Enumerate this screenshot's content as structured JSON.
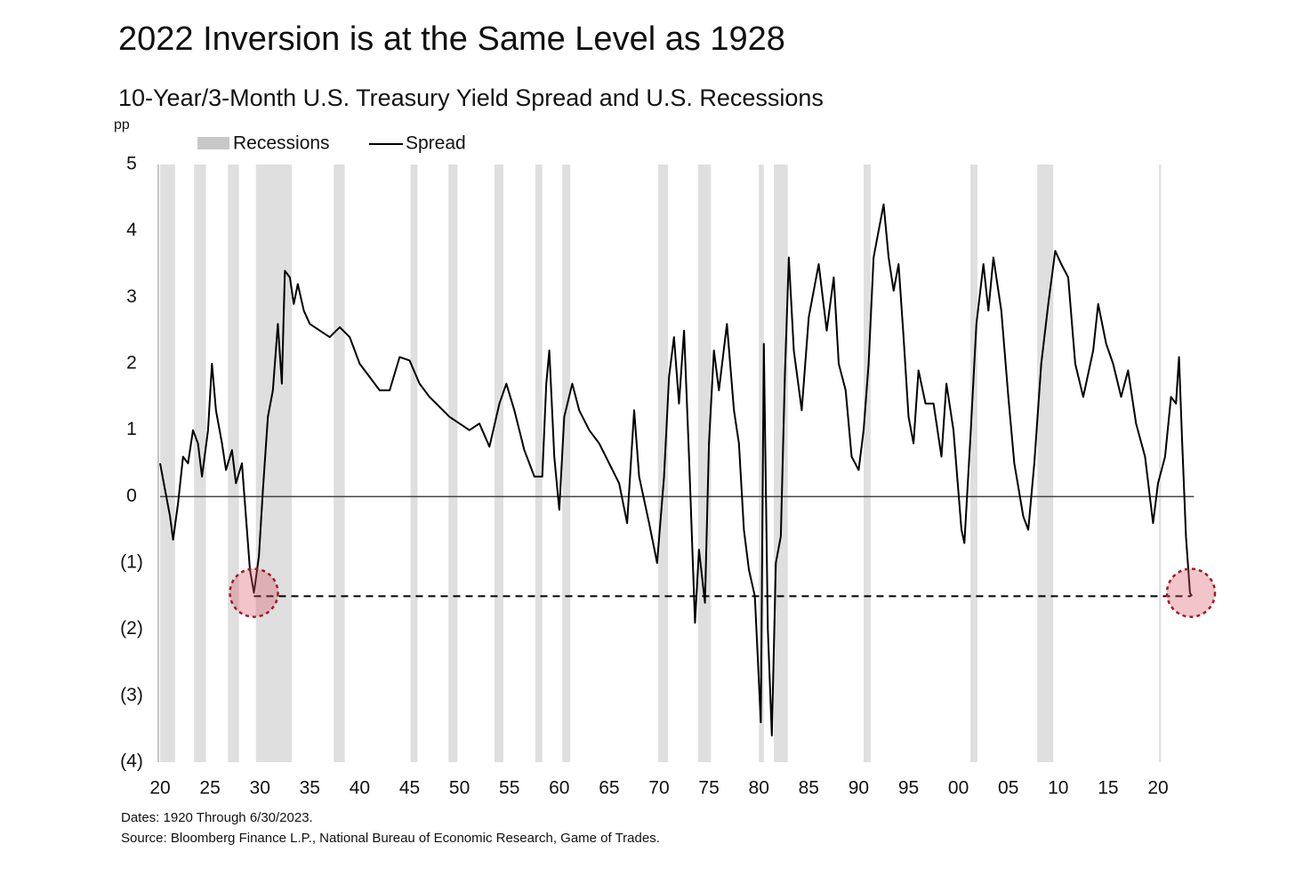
{
  "chart_data": {
    "type": "line",
    "title": "2022 Inversion is at the Same Level as 1928",
    "subtitle": "10-Year/3-Month U.S. Treasury Yield Spread and U.S. Recessions",
    "y_label": "pp",
    "footnotes": [
      "Dates: 1920 Through 6/30/2023.",
      "Source: Bloomberg Finance L.P., National Bureau of Economic Research, Game of Trades."
    ],
    "xlim": [
      1920,
      2023.6
    ],
    "ylim": [
      -4,
      5
    ],
    "xticks": [
      {
        "value": 1920,
        "label": "20"
      },
      {
        "value": 1925,
        "label": "25"
      },
      {
        "value": 1930,
        "label": "30"
      },
      {
        "value": 1935,
        "label": "35"
      },
      {
        "value": 1940,
        "label": "40"
      },
      {
        "value": 1945,
        "label": "45"
      },
      {
        "value": 1950,
        "label": "50"
      },
      {
        "value": 1955,
        "label": "55"
      },
      {
        "value": 1960,
        "label": "60"
      },
      {
        "value": 1965,
        "label": "65"
      },
      {
        "value": 1970,
        "label": "70"
      },
      {
        "value": 1975,
        "label": "75"
      },
      {
        "value": 1980,
        "label": "80"
      },
      {
        "value": 1985,
        "label": "85"
      },
      {
        "value": 1990,
        "label": "90"
      },
      {
        "value": 1995,
        "label": "95"
      },
      {
        "value": 2000,
        "label": "00"
      },
      {
        "value": 2005,
        "label": "05"
      },
      {
        "value": 2010,
        "label": "10"
      },
      {
        "value": 2015,
        "label": "15"
      },
      {
        "value": 2020,
        "label": "20"
      }
    ],
    "yticks": [
      5,
      4,
      3,
      2,
      1,
      0,
      {
        "value": -1,
        "label": "(1)"
      },
      {
        "value": -2,
        "label": "(2)"
      },
      {
        "value": -3,
        "label": "(3)"
      },
      {
        "value": -4,
        "label": "(4)"
      }
    ],
    "recessions": {
      "name": "Recessions",
      "color": "#d4d4d4",
      "spans": [
        [
          1920.0,
          1921.5
        ],
        [
          1923.4,
          1924.6
        ],
        [
          1926.8,
          1927.9
        ],
        [
          1929.6,
          1933.2
        ],
        [
          1937.4,
          1938.5
        ],
        [
          1945.1,
          1945.8
        ],
        [
          1948.9,
          1949.8
        ],
        [
          1953.5,
          1954.4
        ],
        [
          1957.6,
          1958.3
        ],
        [
          1960.3,
          1961.1
        ],
        [
          1969.9,
          1970.9
        ],
        [
          1973.9,
          1975.2
        ],
        [
          1980.0,
          1980.5
        ],
        [
          1981.5,
          1982.9
        ],
        [
          1990.5,
          1991.2
        ],
        [
          2001.2,
          2001.9
        ],
        [
          2007.9,
          2009.5
        ],
        [
          2020.1,
          2020.3
        ]
      ]
    },
    "x": [
      1920.0,
      1920.5,
      1921.0,
      1921.3,
      1921.8,
      1922.3,
      1922.8,
      1923.3,
      1923.8,
      1924.2,
      1924.8,
      1925.2,
      1925.6,
      1926.2,
      1926.6,
      1927.2,
      1927.6,
      1928.2,
      1928.6,
      1929.0,
      1929.4,
      1929.9,
      1930.3,
      1930.8,
      1931.3,
      1931.8,
      1932.2,
      1932.5,
      1933.0,
      1933.4,
      1933.8,
      1934.4,
      1935.0,
      1936.0,
      1937.0,
      1938.0,
      1939.0,
      1940.0,
      1941.0,
      1942.0,
      1943.0,
      1944.0,
      1945.0,
      1946.0,
      1947.0,
      1948.0,
      1949.0,
      1950.0,
      1951.0,
      1952.0,
      1953.0,
      1954.0,
      1954.7,
      1955.5,
      1956.5,
      1957.5,
      1958.3,
      1958.7,
      1959.0,
      1959.5,
      1960.0,
      1960.5,
      1961.3,
      1962.0,
      1963.0,
      1964.0,
      1965.0,
      1966.0,
      1966.8,
      1967.5,
      1968.0,
      1969.0,
      1969.8,
      1970.5,
      1971.0,
      1971.5,
      1972.0,
      1972.5,
      1973.0,
      1973.6,
      1974.0,
      1974.6,
      1975.0,
      1975.5,
      1976.0,
      1976.8,
      1977.5,
      1978.0,
      1978.5,
      1979.0,
      1979.6,
      1980.2,
      1980.5,
      1980.9,
      1981.3,
      1981.7,
      1982.2,
      1982.6,
      1983.0,
      1983.5,
      1984.3,
      1985.0,
      1986.0,
      1986.8,
      1987.5,
      1988.0,
      1988.7,
      1989.3,
      1990.0,
      1990.5,
      1991.0,
      1991.5,
      1992.0,
      1992.5,
      1993.0,
      1993.5,
      1994.0,
      1994.5,
      1995.0,
      1995.5,
      1996.0,
      1996.7,
      1997.5,
      1998.3,
      1998.8,
      1999.5,
      2000.3,
      2000.6,
      2001.2,
      2001.8,
      2002.5,
      2003.0,
      2003.5,
      2004.3,
      2005.0,
      2005.6,
      2006.5,
      2007.0,
      2007.6,
      2008.3,
      2009.0,
      2009.7,
      2010.3,
      2011.0,
      2011.7,
      2012.5,
      2013.5,
      2014.0,
      2014.8,
      2015.5,
      2016.3,
      2017.0,
      2017.8,
      2018.7,
      2019.5,
      2020.0,
      2020.7,
      2021.3,
      2021.8,
      2022.1,
      2022.4,
      2022.8,
      2023.2,
      2023.4
    ],
    "series": [
      {
        "name": "Spread",
        "color": "#000000",
        "values": [
          0.5,
          0.1,
          -0.3,
          -0.65,
          -0.1,
          0.6,
          0.5,
          1.0,
          0.8,
          0.3,
          1.0,
          2.0,
          1.3,
          0.8,
          0.4,
          0.7,
          0.2,
          0.5,
          -0.3,
          -1.1,
          -1.45,
          -0.9,
          0.1,
          1.2,
          1.6,
          2.6,
          1.7,
          3.4,
          3.3,
          2.9,
          3.2,
          2.8,
          2.6,
          2.5,
          2.4,
          2.55,
          2.4,
          2.0,
          1.8,
          1.6,
          1.6,
          2.1,
          2.05,
          1.7,
          1.5,
          1.35,
          1.2,
          1.1,
          1.0,
          1.1,
          0.75,
          1.4,
          1.7,
          1.3,
          0.7,
          0.3,
          0.3,
          1.7,
          2.2,
          0.6,
          -0.2,
          1.2,
          1.7,
          1.3,
          1.0,
          0.8,
          0.5,
          0.2,
          -0.4,
          1.3,
          0.3,
          -0.4,
          -1.0,
          0.3,
          1.8,
          2.4,
          1.4,
          2.5,
          0.6,
          -1.9,
          -0.8,
          -1.6,
          0.8,
          2.2,
          1.6,
          2.6,
          1.3,
          0.8,
          -0.5,
          -1.1,
          -1.5,
          -3.4,
          2.3,
          -2.0,
          -3.6,
          -1.0,
          -0.6,
          1.8,
          3.6,
          2.2,
          1.3,
          2.7,
          3.5,
          2.5,
          3.3,
          2.0,
          1.6,
          0.6,
          0.4,
          1.0,
          2.0,
          3.6,
          4.0,
          4.4,
          3.6,
          3.1,
          3.5,
          2.4,
          1.2,
          0.8,
          1.9,
          1.4,
          1.4,
          0.6,
          1.7,
          1.0,
          -0.5,
          -0.7,
          0.9,
          2.6,
          3.5,
          2.8,
          3.6,
          2.8,
          1.5,
          0.5,
          -0.3,
          -0.5,
          0.5,
          2.0,
          2.9,
          3.7,
          3.5,
          3.3,
          2.0,
          1.5,
          2.2,
          2.9,
          2.3,
          2.0,
          1.5,
          1.9,
          1.1,
          0.6,
          -0.4,
          0.2,
          0.6,
          1.5,
          1.4,
          2.1,
          0.9,
          -0.6,
          -1.45,
          -1.5
        ]
      }
    ],
    "reference_line": -1.5,
    "highlights": [
      {
        "x": 1929.4,
        "y": -1.45
      },
      {
        "x": 2023.3,
        "y": -1.45
      }
    ]
  }
}
